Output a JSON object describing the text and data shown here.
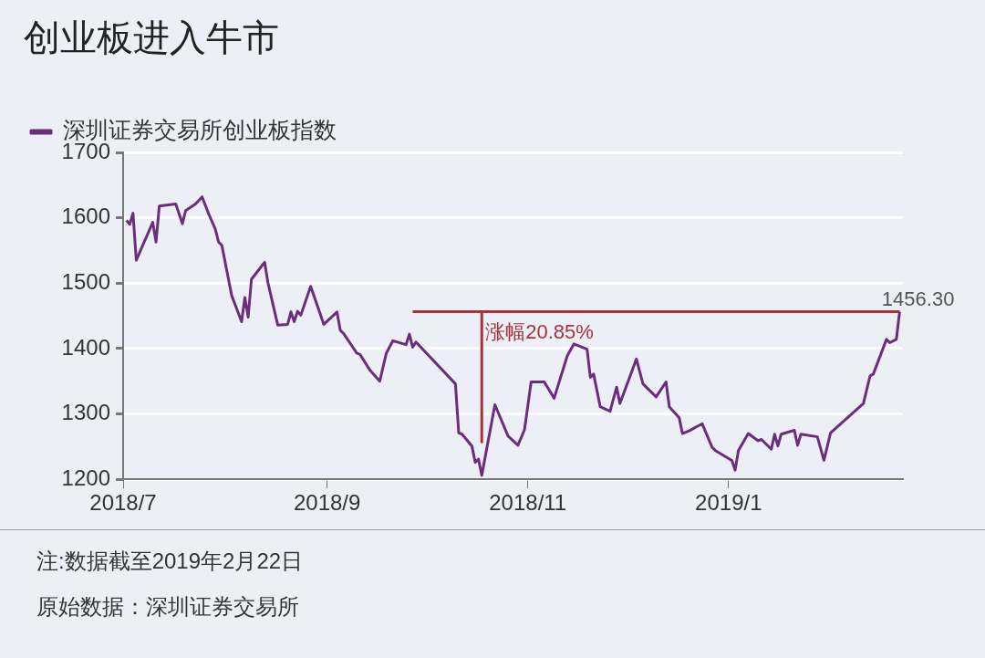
{
  "chart_data": {
    "type": "line",
    "title": "创业板进入牛市",
    "xlim": [
      "2018-07-01",
      "2019-02-23"
    ],
    "xticks": [
      {
        "value": "2018-07-01",
        "label": "2018/7"
      },
      {
        "value": "2018-09-01",
        "label": "2018/9"
      },
      {
        "value": "2018-11-01",
        "label": "2018/11"
      },
      {
        "value": "2019-01-01",
        "label": "2019/1"
      }
    ],
    "ylim": [
      1200,
      1700
    ],
    "yticks": [
      1200,
      1300,
      1400,
      1500,
      1600,
      1700
    ],
    "grid": "y",
    "legend": "top left",
    "marker": "none",
    "line_style": "solid",
    "series": [
      {
        "name": "深圳证券交易所创业板指数",
        "color": "#6b2d7d",
        "x": [
          "2018-07-02",
          "2018-07-03",
          "2018-07-04",
          "2018-07-05",
          "2018-07-10",
          "2018-07-11",
          "2018-07-12",
          "2018-07-17",
          "2018-07-19",
          "2018-07-20",
          "2018-07-23",
          "2018-07-25",
          "2018-07-27",
          "2018-07-29",
          "2018-07-30",
          "2018-07-31",
          "2018-08-03",
          "2018-08-06",
          "2018-08-07",
          "2018-08-08",
          "2018-08-09",
          "2018-08-13",
          "2018-08-14",
          "2018-08-17",
          "2018-08-20",
          "2018-08-21",
          "2018-08-22",
          "2018-08-23",
          "2018-08-24",
          "2018-08-27",
          "2018-08-31",
          "2018-09-04",
          "2018-09-05",
          "2018-09-06",
          "2018-09-10",
          "2018-09-11",
          "2018-09-14",
          "2018-09-17",
          "2018-09-19",
          "2018-09-21",
          "2018-09-25",
          "2018-09-26",
          "2018-09-27",
          "2018-09-28",
          "2018-10-10",
          "2018-10-11",
          "2018-10-12",
          "2018-10-15",
          "2018-10-16",
          "2018-10-17",
          "2018-10-18",
          "2018-10-22",
          "2018-10-26",
          "2018-10-29",
          "2018-10-31",
          "2018-11-02",
          "2018-11-06",
          "2018-11-09",
          "2018-11-13",
          "2018-11-15",
          "2018-11-19",
          "2018-11-20",
          "2018-11-21",
          "2018-11-23",
          "2018-11-26",
          "2018-11-28",
          "2018-11-29",
          "2018-12-04",
          "2018-12-06",
          "2018-12-10",
          "2018-12-13",
          "2018-12-14",
          "2018-12-17",
          "2018-12-18",
          "2018-12-20",
          "2018-12-24",
          "2018-12-27",
          "2018-12-28",
          "2019-01-02",
          "2019-01-03",
          "2019-01-04",
          "2019-01-07",
          "2019-01-10",
          "2019-01-11",
          "2019-01-14",
          "2019-01-15",
          "2019-01-16",
          "2019-01-17",
          "2019-01-21",
          "2019-01-22",
          "2019-01-23",
          "2019-01-28",
          "2019-01-30",
          "2019-02-01",
          "2019-02-11",
          "2019-02-13",
          "2019-02-14",
          "2019-02-18",
          "2019-02-19",
          "2019-02-21",
          "2019-02-22"
        ],
        "values": [
          1596,
          1590,
          1607,
          1535,
          1593,
          1563,
          1618,
          1621,
          1591,
          1611,
          1621,
          1632,
          1606,
          1583,
          1563,
          1558,
          1481,
          1441,
          1478,
          1448,
          1506,
          1532,
          1501,
          1436,
          1437,
          1456,
          1441,
          1457,
          1451,
          1495,
          1437,
          1456,
          1428,
          1423,
          1393,
          1391,
          1367,
          1350,
          1393,
          1412,
          1406,
          1422,
          1402,
          1410,
          1346,
          1271,
          1269,
          1251,
          1226,
          1231,
          1206,
          1314,
          1266,
          1252,
          1276,
          1349,
          1349,
          1324,
          1389,
          1407,
          1399,
          1356,
          1361,
          1311,
          1304,
          1341,
          1316,
          1384,
          1346,
          1326,
          1349,
          1311,
          1294,
          1270,
          1274,
          1285,
          1249,
          1244,
          1229,
          1214,
          1244,
          1270,
          1259,
          1261,
          1246,
          1269,
          1251,
          1269,
          1275,
          1252,
          1269,
          1265,
          1229,
          1271,
          1316,
          1358,
          1361,
          1414,
          1409,
          1414,
          1456.3
        ]
      },
      {
        "color": "#a8323a",
        "x": [
          "2018-09-27",
          "2019-02-22"
        ],
        "values": [
          1456.3,
          1456.3
        ]
      },
      {
        "color": "#a8323a",
        "x": [
          "2018-10-18",
          "2018-10-18"
        ],
        "values": [
          1456.3,
          1257
        ]
      }
    ],
    "annotations": [
      {
        "text": "涨幅20.85%",
        "x": "2018-10-18",
        "y": 1456.3
      },
      {
        "text": "1456.30",
        "x": "2019-02-22",
        "y": 1456.3
      },
      "注:数据截至2019年2月22日",
      "原始数据：深圳证券交易所"
    ]
  }
}
